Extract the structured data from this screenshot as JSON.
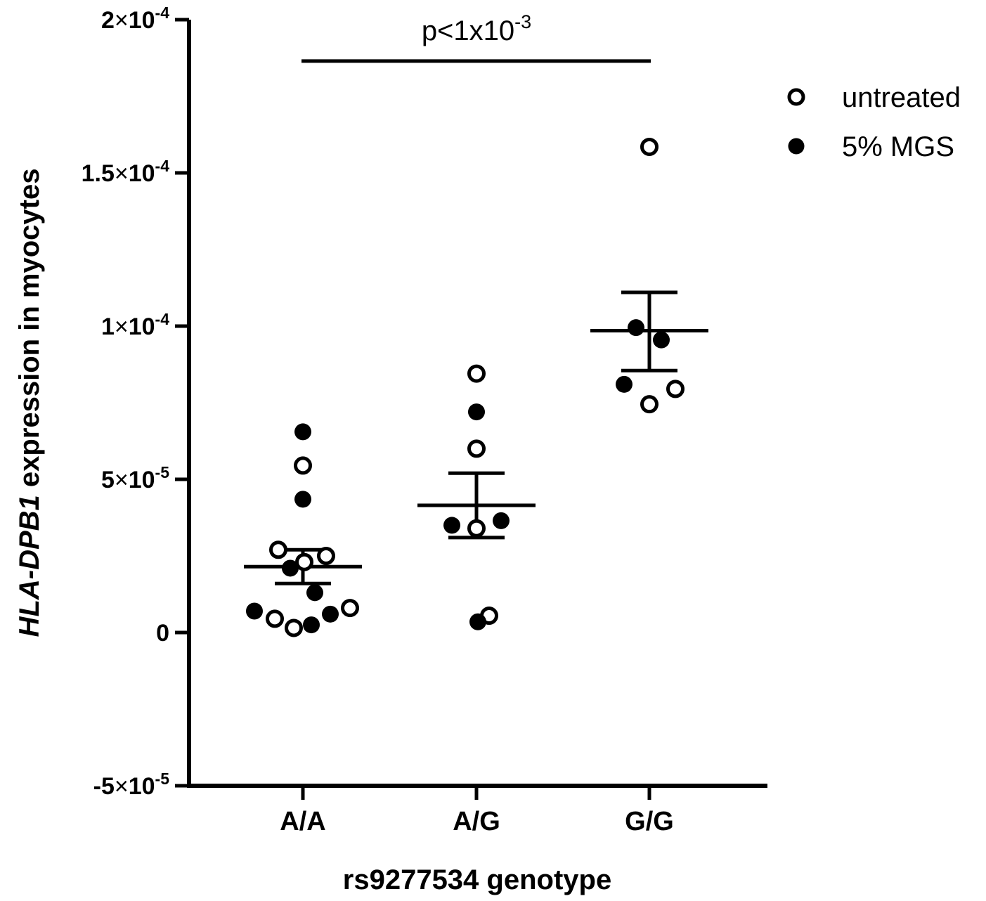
{
  "chart_data": {
    "type": "scatter",
    "xlabel": "rs9277534 genotype",
    "ylabel_italic": "HLA-DPB1",
    "ylabel_rest": " expression in myocytes",
    "categories": [
      "A/A",
      "A/G",
      "G/G"
    ],
    "ylim": [
      -5e-05,
      0.0002
    ],
    "yticks": [
      {
        "value": -5e-05,
        "mantissa": "-5",
        "exponent": "-5"
      },
      {
        "value": 0,
        "mantissa": "0",
        "exponent": ""
      },
      {
        "value": 5e-05,
        "mantissa": "5",
        "exponent": "-5"
      },
      {
        "value": 0.0001,
        "mantissa": "1",
        "exponent": "-4"
      },
      {
        "value": 0.00015,
        "mantissa": "1.5",
        "exponent": "-4"
      },
      {
        "value": 0.0002,
        "mantissa": "2",
        "exponent": "-4"
      }
    ],
    "times_symbol": "×",
    "tick_base": "10",
    "series": [
      {
        "name": "untreated",
        "marker": "open-circle",
        "points": [
          {
            "x": "A/A",
            "y": 5.45e-05
          },
          {
            "x": "A/A",
            "y": 2.7e-05
          },
          {
            "x": "A/A",
            "y": 2.3e-05
          },
          {
            "x": "A/A",
            "y": 2.5e-05
          },
          {
            "x": "A/A",
            "y": 8e-06
          },
          {
            "x": "A/A",
            "y": 4.5e-06
          },
          {
            "x": "A/A",
            "y": 1.5e-06
          },
          {
            "x": "A/G",
            "y": 8.45e-05
          },
          {
            "x": "A/G",
            "y": 6e-05
          },
          {
            "x": "A/G",
            "y": 3.4e-05
          },
          {
            "x": "A/G",
            "y": 5.5e-06
          },
          {
            "x": "G/G",
            "y": 0.0001585
          },
          {
            "x": "G/G",
            "y": 7.95e-05
          },
          {
            "x": "G/G",
            "y": 7.45e-05
          }
        ]
      },
      {
        "name": "5% MGS",
        "marker": "filled-circle",
        "points": [
          {
            "x": "A/A",
            "y": 6.55e-05
          },
          {
            "x": "A/A",
            "y": 4.35e-05
          },
          {
            "x": "A/A",
            "y": 2.1e-05
          },
          {
            "x": "A/A",
            "y": 1.3e-05
          },
          {
            "x": "A/A",
            "y": 7e-06
          },
          {
            "x": "A/A",
            "y": 6e-06
          },
          {
            "x": "A/A",
            "y": 2.5e-06
          },
          {
            "x": "A/G",
            "y": 7.2e-05
          },
          {
            "x": "A/G",
            "y": 3.65e-05
          },
          {
            "x": "A/G",
            "y": 3.5e-05
          },
          {
            "x": "A/G",
            "y": 3.5e-06
          },
          {
            "x": "G/G",
            "y": 9.95e-05
          },
          {
            "x": "G/G",
            "y": 9.55e-05
          },
          {
            "x": "G/G",
            "y": 8.1e-05
          }
        ]
      }
    ],
    "summary": [
      {
        "x": "A/A",
        "mean": 2.15e-05,
        "sem_low": 1.6e-05,
        "sem_high": 2.7e-05
      },
      {
        "x": "A/G",
        "mean": 4.15e-05,
        "sem_low": 3.1e-05,
        "sem_high": 5.2e-05
      },
      {
        "x": "G/G",
        "mean": 9.85e-05,
        "sem_low": 8.55e-05,
        "sem_high": 0.000111
      }
    ],
    "annotation": {
      "text_base": "p<1x10",
      "text_exponent": "-3",
      "from": "A/A",
      "to": "G/G",
      "y": 0.0001865
    },
    "legend": {
      "position": "top-right",
      "items": [
        {
          "label": "untreated",
          "marker": "open-circle"
        },
        {
          "label": "5% MGS",
          "marker": "filled-circle"
        }
      ]
    },
    "grid": false
  }
}
